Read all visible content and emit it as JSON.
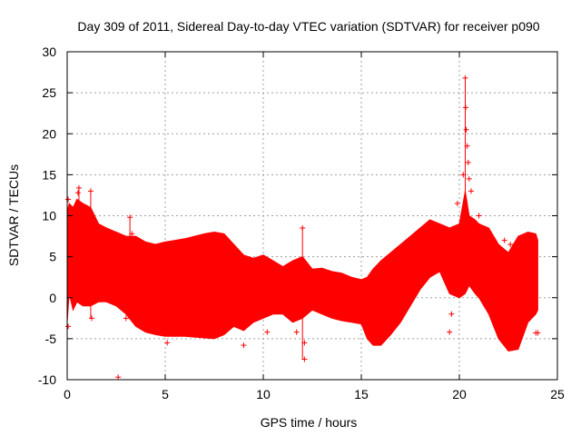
{
  "chart_data": {
    "type": "area",
    "title": "Day 309 of 2011, Sidereal Day-to-day VTEC variation (SDTVAR) for receiver p090",
    "xlabel": "GPS time / hours",
    "ylabel": "SDTVAR / TECUs",
    "xlim": [
      0,
      25
    ],
    "ylim": [
      -10,
      30
    ],
    "xticks": [
      0,
      5,
      10,
      15,
      20,
      25
    ],
    "yticks": [
      -10,
      -5,
      0,
      5,
      10,
      15,
      20,
      25,
      30
    ],
    "grid": true,
    "series_color": "#ff0000",
    "band": {
      "x": [
        0.0,
        0.1,
        0.3,
        0.5,
        0.8,
        1.2,
        1.6,
        2.0,
        2.5,
        3.0,
        3.5,
        4.0,
        4.5,
        5.0,
        5.5,
        6.0,
        6.5,
        7.0,
        7.5,
        8.0,
        8.5,
        9.0,
        9.5,
        10.0,
        10.5,
        11.0,
        11.5,
        12.0,
        12.5,
        13.0,
        13.5,
        14.0,
        14.5,
        15.0,
        15.3,
        15.6,
        16.0,
        16.5,
        17.0,
        17.5,
        18.0,
        18.5,
        19.0,
        19.5,
        20.0,
        20.3,
        20.5,
        20.8,
        21.0,
        21.5,
        22.0,
        22.5,
        23.0,
        23.5,
        23.9,
        24.0
      ],
      "upper": [
        10.5,
        11.5,
        11.0,
        12.0,
        11.5,
        11.0,
        9.0,
        8.5,
        8.0,
        7.5,
        7.5,
        6.8,
        6.5,
        6.8,
        7.0,
        7.2,
        7.5,
        7.8,
        8.0,
        7.8,
        6.5,
        5.2,
        4.8,
        5.2,
        4.5,
        3.8,
        4.5,
        5.0,
        3.5,
        3.6,
        3.2,
        3.0,
        2.5,
        2.2,
        2.5,
        3.5,
        4.5,
        5.5,
        6.5,
        7.5,
        8.5,
        9.5,
        9.0,
        8.5,
        9.0,
        13.0,
        10.0,
        9.5,
        9.0,
        8.5,
        6.5,
        5.5,
        7.5,
        8.0,
        7.8,
        7.0
      ],
      "lower": [
        -3.0,
        0.5,
        -1.5,
        -0.5,
        -1.0,
        -1.0,
        -0.5,
        -0.5,
        -1.0,
        -2.0,
        -3.5,
        -4.2,
        -4.5,
        -4.7,
        -4.7,
        -4.7,
        -4.8,
        -4.9,
        -5.0,
        -4.5,
        -3.5,
        -4.0,
        -3.0,
        -2.5,
        -2.0,
        -2.0,
        -3.0,
        -2.5,
        -1.5,
        -2.0,
        -2.5,
        -2.8,
        -3.0,
        -3.2,
        -5.0,
        -5.8,
        -5.8,
        -4.5,
        -3.0,
        -1.0,
        1.0,
        2.5,
        3.2,
        0.5,
        0.0,
        0.5,
        1.5,
        0.5,
        0.0,
        -2.0,
        -5.0,
        -6.5,
        -6.3,
        -3.0,
        -2.0,
        -1.5
      ]
    },
    "outliers": [
      {
        "x": 0.05,
        "y": 12.0
      },
      {
        "x": 0.05,
        "y": -3.5
      },
      {
        "x": 0.6,
        "y": 13.4
      },
      {
        "x": 0.55,
        "y": 12.8
      },
      {
        "x": 1.2,
        "y": 13.0
      },
      {
        "x": 1.25,
        "y": -2.5
      },
      {
        "x": 2.6,
        "y": -9.7
      },
      {
        "x": 3.0,
        "y": -2.5
      },
      {
        "x": 3.2,
        "y": 9.8
      },
      {
        "x": 3.3,
        "y": 7.8
      },
      {
        "x": 5.1,
        "y": -5.5
      },
      {
        "x": 9.0,
        "y": -5.8
      },
      {
        "x": 9.1,
        "y": 4.5
      },
      {
        "x": 10.2,
        "y": -4.2
      },
      {
        "x": 11.7,
        "y": -4.2
      },
      {
        "x": 12.0,
        "y": 8.5
      },
      {
        "x": 12.1,
        "y": -7.5
      },
      {
        "x": 12.1,
        "y": -5.5
      },
      {
        "x": 19.5,
        "y": -4.2
      },
      {
        "x": 19.6,
        "y": -2.0
      },
      {
        "x": 19.9,
        "y": 11.5
      },
      {
        "x": 20.3,
        "y": 26.8
      },
      {
        "x": 20.32,
        "y": 23.2
      },
      {
        "x": 20.35,
        "y": 20.5
      },
      {
        "x": 20.4,
        "y": 18.5
      },
      {
        "x": 20.45,
        "y": 16.5
      },
      {
        "x": 20.2,
        "y": 15.0
      },
      {
        "x": 20.5,
        "y": 14.5
      },
      {
        "x": 20.6,
        "y": 13.0
      },
      {
        "x": 21.0,
        "y": 10.0
      },
      {
        "x": 22.3,
        "y": 7.0
      },
      {
        "x": 22.6,
        "y": 6.5
      },
      {
        "x": 23.9,
        "y": -4.3
      },
      {
        "x": 24.0,
        "y": -4.3
      }
    ],
    "spikes": [
      {
        "x": 20.3,
        "ylow": 8.0,
        "yhigh": 26.8
      },
      {
        "x": 3.2,
        "ylow": 5.0,
        "yhigh": 9.8
      },
      {
        "x": 12.0,
        "ylow": -7.5,
        "yhigh": 8.5
      },
      {
        "x": 0.6,
        "ylow": 8.0,
        "yhigh": 13.4
      },
      {
        "x": 1.2,
        "ylow": -2.5,
        "yhigh": 13.0
      }
    ]
  }
}
